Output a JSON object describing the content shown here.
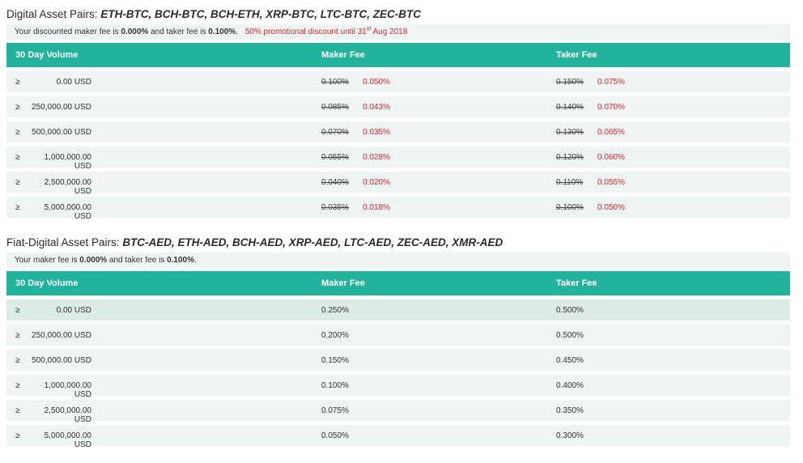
{
  "section1": {
    "title_prefix": "Digital Asset Pairs:",
    "pairs": "ETH-BTC, BCH-BTC, BCH-ETH, XRP-BTC, LTC-BTC, ZEC-BTC",
    "notice": {
      "part1": "Your discounted maker fee is ",
      "maker": "0.000%",
      "part2": " and taker fee is ",
      "taker": "0.100%",
      "part3": ".",
      "promo_text": "50% promotional discount until 31",
      "promo_sup": "st",
      "promo_end": " Aug 2018"
    },
    "headers": {
      "volume": "30 Day Volume",
      "maker": "Maker Fee",
      "taker": "Taker Fee"
    },
    "rows": [
      {
        "ge": "≥",
        "volume": "0.00 USD",
        "maker_old": "0.100%",
        "maker_new": "0.050%",
        "taker_old": "0.150%",
        "taker_new": "0.075%"
      },
      {
        "ge": "≥",
        "volume": "250,000.00 USD",
        "maker_old": "0.085%",
        "maker_new": "0.043%",
        "taker_old": "0.140%",
        "taker_new": "0.070%"
      },
      {
        "ge": "≥",
        "volume": "500,000.00 USD",
        "maker_old": "0.070%",
        "maker_new": "0.035%",
        "taker_old": "0.130%",
        "taker_new": "0.065%"
      },
      {
        "ge": "≥",
        "volume": "1,000,000.00 USD",
        "maker_old": "0.055%",
        "maker_new": "0.028%",
        "taker_old": "0.120%",
        "taker_new": "0.060%"
      },
      {
        "ge": "≥",
        "volume": "2,500,000.00 USD",
        "maker_old": "0.040%",
        "maker_new": "0.020%",
        "taker_old": "0.110%",
        "taker_new": "0.055%"
      },
      {
        "ge": "≥",
        "volume": "5,000,000.00 USD",
        "maker_old": "0.035%",
        "maker_new": "0.018%",
        "taker_old": "0.100%",
        "taker_new": "0.050%"
      }
    ]
  },
  "section2": {
    "title_prefix": "Fiat-Digital Asset Pairs:",
    "pairs": "BTC-AED, ETH-AED, BCH-AED, XRP-AED, LTC-AED, ZEC-AED, XMR-AED",
    "notice": {
      "part1": "Your maker fee is ",
      "maker": "0.000%",
      "part2": " and taker fee is ",
      "taker": "0.100%",
      "part3": "."
    },
    "headers": {
      "volume": "30 Day Volume",
      "maker": "Maker Fee",
      "taker": "Taker Fee"
    },
    "rows": [
      {
        "ge": "≥",
        "volume": "0.00 USD",
        "maker": "0.250%",
        "taker": "0.500%"
      },
      {
        "ge": "≥",
        "volume": "250,000.00 USD",
        "maker": "0.200%",
        "taker": "0.500%"
      },
      {
        "ge": "≥",
        "volume": "500,000.00 USD",
        "maker": "0.150%",
        "taker": "0.450%"
      },
      {
        "ge": "≥",
        "volume": "1,000,000.00 USD",
        "maker": "0.100%",
        "taker": "0.400%"
      },
      {
        "ge": "≥",
        "volume": "2,500,000.00 USD",
        "maker": "0.075%",
        "taker": "0.350%"
      },
      {
        "ge": "≥",
        "volume": "5,000,000.00 USD",
        "maker": "0.050%",
        "taker": "0.300%"
      }
    ]
  }
}
